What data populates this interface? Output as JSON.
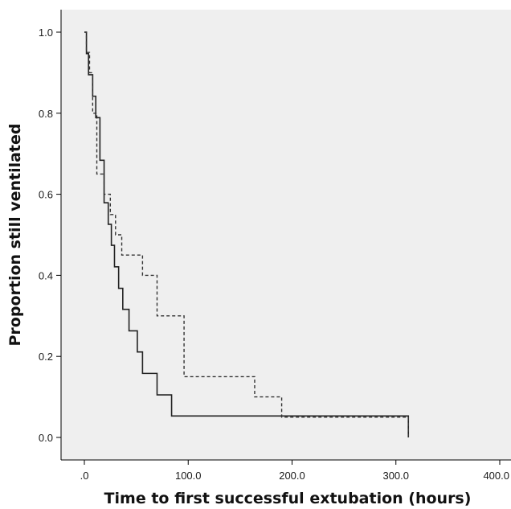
{
  "chart_data": {
    "type": "line",
    "subtype": "kaplan-meier step",
    "title": "",
    "xlabel": "Time to first successful extubation (hours)",
    "ylabel": "Proportion still ventilated",
    "xlim": [
      -20,
      420
    ],
    "ylim": [
      -0.05,
      1.06
    ],
    "x_ticks": [
      0,
      100,
      200,
      300,
      400
    ],
    "x_tick_labels": [
      ".0",
      "100.0",
      "200.0",
      "300.0",
      "400.0"
    ],
    "y_ticks": [
      0.0,
      0.2,
      0.4,
      0.6,
      0.8,
      1.0
    ],
    "y_tick_labels": [
      "0.0",
      "0.2",
      "0.4",
      "0.6",
      "0.8",
      "1.0"
    ],
    "grid": false,
    "legend": "none",
    "plot_background": "#efefef",
    "series": [
      {
        "style": "solid",
        "color": "#222222",
        "x": [
          0,
          2,
          4,
          8,
          11,
          15,
          19,
          23,
          26,
          29,
          33,
          37,
          43,
          51,
          56,
          70,
          84,
          312
        ],
        "y": [
          1.0,
          0.947,
          0.895,
          0.842,
          0.789,
          0.684,
          0.579,
          0.526,
          0.474,
          0.421,
          0.368,
          0.316,
          0.263,
          0.211,
          0.158,
          0.105,
          0.053,
          0.0
        ]
      },
      {
        "style": "dashed",
        "color": "#333333",
        "x": [
          0,
          2,
          5,
          8,
          12,
          19,
          25,
          30,
          36,
          56,
          70,
          96,
          164,
          190,
          312
        ],
        "y": [
          1.0,
          0.95,
          0.9,
          0.8,
          0.65,
          0.6,
          0.55,
          0.5,
          0.45,
          0.4,
          0.3,
          0.15,
          0.1,
          0.05,
          0.0
        ]
      }
    ]
  }
}
